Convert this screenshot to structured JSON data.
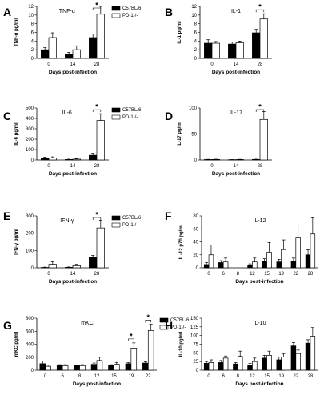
{
  "chart_data": [
    {
      "panel": "A",
      "title": "TNF-α",
      "type": "bar",
      "ylabel": "TNF-α pg/ml",
      "xlabel": "Days post-infection",
      "ylim": [
        0,
        12
      ],
      "yticks": [
        0,
        2,
        4,
        6,
        8,
        10,
        12
      ],
      "categories": [
        "0",
        "14",
        "28"
      ],
      "series": [
        {
          "name": "C57BL/6",
          "values": [
            2.0,
            1.0,
            4.8
          ],
          "errors": [
            0.5,
            0.4,
            0.8
          ],
          "color": "#000000"
        },
        {
          "name": "PD-1-/-",
          "values": [
            4.8,
            2.0,
            10.2
          ],
          "errors": [
            1.1,
            0.9,
            1.8
          ],
          "color": "#ffffff"
        }
      ],
      "significance": [
        {
          "category": "28",
          "label": "*"
        }
      ],
      "legend": "top-right"
    },
    {
      "panel": "B",
      "title": "IL-1",
      "type": "bar",
      "ylabel": "IL-1 pg/ml",
      "xlabel": "Days post-infection",
      "ylim": [
        0,
        12
      ],
      "yticks": [
        0,
        2,
        4,
        6,
        8,
        10,
        12
      ],
      "categories": [
        "0",
        "14",
        "28"
      ],
      "series": [
        {
          "name": "C57BL/6",
          "values": [
            3.5,
            3.3,
            5.9
          ],
          "errors": [
            0.8,
            0.5,
            0.8
          ],
          "color": "#000000"
        },
        {
          "name": "PD-1-/-",
          "values": [
            3.5,
            3.6,
            9.1
          ],
          "errors": [
            0.4,
            0.4,
            1.2
          ],
          "color": "#ffffff"
        }
      ],
      "significance": [
        {
          "category": "28",
          "label": "*"
        }
      ],
      "legend": "none"
    },
    {
      "panel": "C",
      "title": "IL-6",
      "type": "bar",
      "ylabel": "IL-6 pg/ml",
      "xlabel": "Days post-infection",
      "ylim": [
        0,
        500
      ],
      "yticks": [
        0,
        100,
        200,
        300,
        400,
        500
      ],
      "categories": [
        "0",
        "14",
        "28"
      ],
      "series": [
        {
          "name": "C57BL/6",
          "values": [
            20,
            5,
            45
          ],
          "errors": [
            8,
            3,
            20
          ],
          "color": "#000000"
        },
        {
          "name": "PD-1-/-",
          "values": [
            18,
            8,
            380
          ],
          "errors": [
            12,
            5,
            65
          ],
          "color": "#ffffff"
        }
      ],
      "significance": [
        {
          "category": "28",
          "label": "*"
        }
      ],
      "legend": "top-right"
    },
    {
      "panel": "D",
      "title": "IL-17",
      "type": "bar",
      "ylabel": "IL-17 pg/ml",
      "xlabel": "Days post-infection",
      "ylim": [
        0,
        100
      ],
      "yticks": [
        0,
        50,
        100
      ],
      "categories": [
        "0",
        "14",
        "28"
      ],
      "series": [
        {
          "name": "C57BL/6",
          "values": [
            0.8,
            0.5,
            1.0
          ],
          "errors": [
            0.5,
            0.3,
            0.5
          ],
          "color": "#000000"
        },
        {
          "name": "PD-1-/-",
          "values": [
            1.0,
            0.8,
            78
          ],
          "errors": [
            0.5,
            0.5,
            15
          ],
          "color": "#ffffff"
        }
      ],
      "significance": [
        {
          "category": "28",
          "label": "*"
        }
      ],
      "legend": "none"
    },
    {
      "panel": "E",
      "title": "IFN-γ",
      "type": "bar",
      "ylabel": "IFN-γ pg/ml",
      "xlabel": "Days post-infection",
      "ylim": [
        0,
        300
      ],
      "yticks": [
        0,
        100,
        200,
        300
      ],
      "categories": [
        "0",
        "14",
        "28"
      ],
      "series": [
        {
          "name": "C57BL/6",
          "values": [
            2,
            3,
            60
          ],
          "errors": [
            2,
            2,
            12
          ],
          "color": "#000000"
        },
        {
          "name": "PD-1-/-",
          "values": [
            20,
            12,
            230
          ],
          "errors": [
            15,
            8,
            45
          ],
          "color": "#ffffff"
        }
      ],
      "significance": [
        {
          "category": "28",
          "label": "*"
        }
      ],
      "legend": "top-right"
    },
    {
      "panel": "F",
      "title": "IL-12",
      "type": "bar",
      "ylabel": "IL-12 p70 pg/ml",
      "xlabel": "Days post-infection",
      "ylim": [
        0,
        80
      ],
      "yticks": [
        0,
        20,
        40,
        60,
        80
      ],
      "categories": [
        "0",
        "6",
        "8",
        "12",
        "15",
        "19",
        "22",
        "28"
      ],
      "series": [
        {
          "name": "C57BL/6",
          "values": [
            5,
            8,
            0,
            4,
            10,
            9,
            10,
            20
          ],
          "errors": [
            3,
            3,
            0,
            2,
            4,
            4,
            5,
            8
          ],
          "color": "#000000"
        },
        {
          "name": "PD-1-/-",
          "values": [
            20,
            9,
            0,
            9,
            24,
            28,
            46,
            52
          ],
          "errors": [
            15,
            6,
            0,
            6,
            15,
            15,
            20,
            25
          ],
          "color": "#ffffff"
        }
      ],
      "legend": "none"
    },
    {
      "panel": "G",
      "title": "mKC",
      "type": "bar",
      "ylabel": "mKC pg/ml",
      "xlabel": "Days post-infection",
      "ylim": [
        0,
        800
      ],
      "yticks": [
        0,
        200,
        400,
        600,
        800
      ],
      "categories": [
        "0",
        "6",
        "8",
        "12",
        "15",
        "19",
        "22"
      ],
      "series": [
        {
          "name": "C57BL/6",
          "values": [
            100,
            70,
            70,
            90,
            70,
            100,
            110
          ],
          "errors": [
            40,
            15,
            10,
            20,
            15,
            15,
            20
          ],
          "color": "#000000"
        },
        {
          "name": "PD-1-/-",
          "values": [
            60,
            70,
            70,
            150,
            90,
            340,
            610
          ],
          "errors": [
            20,
            15,
            15,
            50,
            30,
            80,
            100
          ],
          "color": "#ffffff"
        }
      ],
      "significance": [
        {
          "category": "19",
          "label": "*"
        },
        {
          "category": "22",
          "label": "*"
        }
      ],
      "legend": "top-right"
    },
    {
      "panel": "H",
      "title": "IL-10",
      "type": "bar",
      "ylabel": "IL-10 pg/ml",
      "xlabel": "Days post-infection",
      "ylim": [
        0,
        150
      ],
      "yticks": [
        0,
        25,
        50,
        75,
        100,
        125,
        150
      ],
      "categories": [
        "0",
        "6",
        "8",
        "12",
        "15",
        "19",
        "22",
        "28"
      ],
      "series": [
        {
          "name": "C57BL/6",
          "values": [
            20,
            22,
            18,
            15,
            35,
            30,
            70,
            78
          ],
          "errors": [
            5,
            6,
            4,
            5,
            8,
            8,
            10,
            10
          ],
          "color": "#000000"
        },
        {
          "name": "PD-1-/-",
          "values": [
            22,
            35,
            40,
            25,
            43,
            38,
            48,
            98
          ],
          "errors": [
            8,
            6,
            15,
            10,
            12,
            10,
            10,
            25
          ],
          "color": "#ffffff"
        }
      ],
      "legend": "none"
    }
  ]
}
